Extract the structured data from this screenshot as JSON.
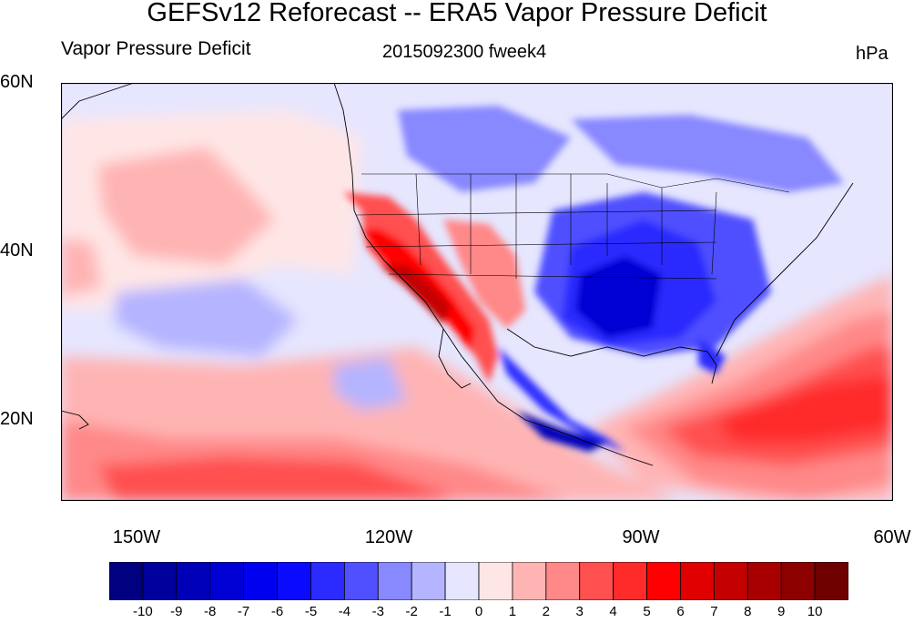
{
  "title": "GEFSv12 Reforecast -- ERA5 Vapor Pressure Deficit",
  "left_string": "Vapor Pressure Deficit",
  "center_string": "2015092300 fweek4",
  "right_string": "hPa",
  "lat_ticks": [
    "60N",
    "40N",
    "20N"
  ],
  "lon_ticks": [
    "150W",
    "120W",
    "90W",
    "60W"
  ],
  "colorbar": {
    "labels": [
      "-10",
      "-9",
      "-8",
      "-7",
      "-6",
      "-5",
      "-4",
      "-3",
      "-2",
      "-1",
      "0",
      "1",
      "2",
      "3",
      "4",
      "5",
      "6",
      "7",
      "8",
      "9",
      "10"
    ],
    "colors": [
      "#000080",
      "#00009c",
      "#0000b8",
      "#0000d4",
      "#0000f0",
      "#0a0aff",
      "#2b2bff",
      "#5050ff",
      "#8888ff",
      "#b4b4ff",
      "#e6e6ff",
      "#ffe6e6",
      "#ffb4b4",
      "#ff8888",
      "#ff5050",
      "#ff2b2b",
      "#ff0000",
      "#e00000",
      "#c40000",
      "#a80000",
      "#8c0000",
      "#6e0000"
    ]
  }
}
